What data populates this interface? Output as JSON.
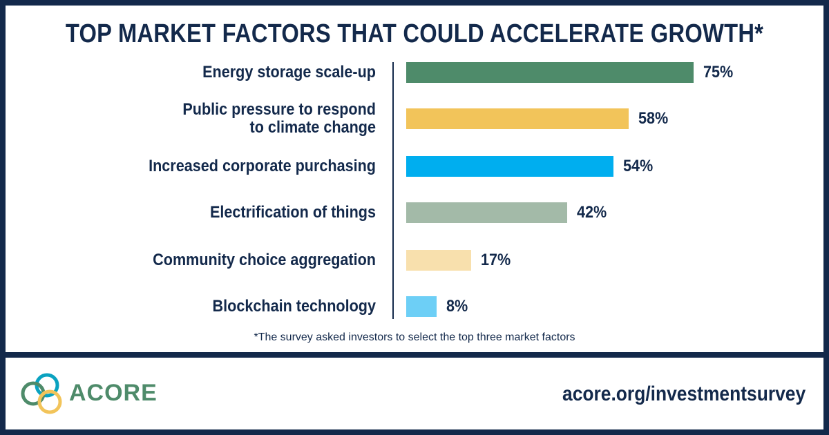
{
  "chart_data": {
    "type": "bar",
    "orientation": "horizontal",
    "title": "TOP MARKET FACTORS THAT COULD ACCELERATE GROWTH*",
    "categories": [
      "Energy storage scale-up",
      "Public pressure to respond\nto climate change",
      "Increased corporate purchasing",
      "Electrification of things",
      "Community choice aggregation",
      "Blockchain technology"
    ],
    "values": [
      75,
      58,
      54,
      42,
      17,
      8
    ],
    "value_labels": [
      "75%",
      "58%",
      "54%",
      "42%",
      "17%",
      "8%"
    ],
    "bar_colors": [
      "#4e8b6a",
      "#f2c45a",
      "#00aeef",
      "#a3baa8",
      "#f8e0ad",
      "#6dcff6"
    ],
    "unit": "%",
    "xlim": [
      0,
      100
    ],
    "footnote": "*The survey asked investors to select the top three market factors"
  },
  "footer": {
    "logo_text": "ACORE",
    "url": "acore.org/investmentsurvey"
  },
  "colors": {
    "navy": "#13294b",
    "brand_green": "#4e8b6a",
    "brand_blue": "#0aa2c0",
    "brand_yellow": "#f2c45a"
  },
  "icons": {
    "logo": "acore-rings-logo-icon"
  }
}
